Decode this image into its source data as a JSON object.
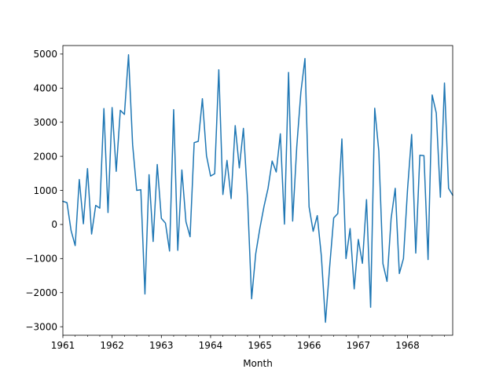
{
  "chart_data": {
    "type": "line",
    "title": "",
    "xlabel": "Month",
    "ylabel": "",
    "grid": false,
    "line_color": "#1f77b4",
    "x_start": "1961-01",
    "x_end": "1968-12",
    "xlim": [
      1961.0,
      1968.917
    ],
    "ylim": [
      -3250,
      5250
    ],
    "x_tick_labels": [
      "1961",
      "1962",
      "1963",
      "1964",
      "1965",
      "1966",
      "1967",
      "1968"
    ],
    "x_tick_values": [
      1961,
      1962,
      1963,
      1964,
      1965,
      1966,
      1967,
      1968
    ],
    "y_tick_labels": [
      "−3000",
      "−2000",
      "−1000",
      "0",
      "1000",
      "2000",
      "3000",
      "4000",
      "5000"
    ],
    "y_tick_values": [
      -3000,
      -2000,
      -1000,
      0,
      1000,
      2000,
      3000,
      4000,
      5000
    ],
    "series": [
      {
        "values": [
          680,
          640,
          -180,
          -620,
          1320,
          20,
          1640,
          -280,
          560,
          480,
          3400,
          350,
          3430,
          1560,
          3350,
          3230,
          4980,
          2340,
          1000,
          1020,
          -2040,
          1460,
          -500,
          1760,
          180,
          40,
          -780,
          3370,
          -760,
          1600,
          80,
          -360,
          2400,
          2440,
          3690,
          2020,
          1420,
          1490,
          4540,
          880,
          1880,
          760,
          2900,
          1660,
          2820,
          780,
          -2180,
          -860,
          -120,
          520,
          1060,
          1860,
          1540,
          2660,
          10,
          4460,
          100,
          2280,
          3880,
          4870,
          520,
          -200,
          260,
          -930,
          -2870,
          -1270,
          190,
          320,
          2510,
          -1000,
          -120,
          -1890,
          -440,
          -1140,
          730,
          -2430,
          3410,
          2150,
          -1150,
          -1670,
          180,
          1060,
          -1440,
          -1000,
          1030,
          2640,
          -840,
          2030,
          2020,
          -1030,
          3800,
          3270,
          800,
          4150,
          1060,
          860
        ]
      }
    ]
  }
}
